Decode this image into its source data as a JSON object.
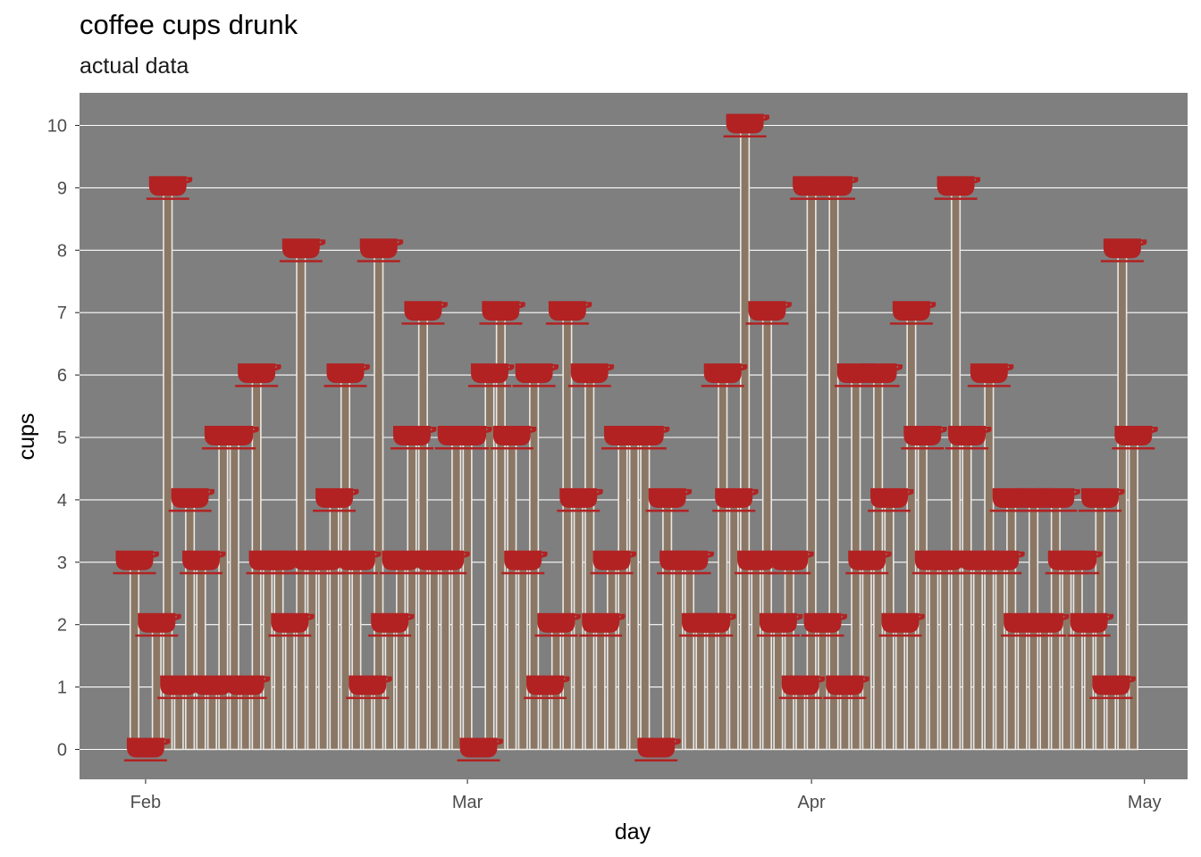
{
  "chart_data": {
    "type": "bar",
    "title": "coffee cups drunk",
    "subtitle": "actual data",
    "xlabel": "day",
    "ylabel": "cups",
    "start_date": "2020-01-31",
    "x_tick_labels": [
      {
        "label": "Feb",
        "date": "2020-02-01"
      },
      {
        "label": "Mar",
        "date": "2020-03-01"
      },
      {
        "label": "Apr",
        "date": "2020-04-01"
      },
      {
        "label": "May",
        "date": "2020-05-01"
      }
    ],
    "y_ticks": [
      0,
      1,
      2,
      3,
      4,
      5,
      6,
      7,
      8,
      9,
      10
    ],
    "ylim": [
      -0.5,
      10.5
    ],
    "grid": true,
    "colors": {
      "panel": "#7f7f7f",
      "bar": "#8b7765",
      "grid": "#ffffff",
      "cup": "#b22222"
    },
    "marker_icon": "coffee-cup-icon",
    "values": [
      3,
      0,
      2,
      9,
      1,
      4,
      3,
      1,
      5,
      5,
      1,
      6,
      3,
      3,
      2,
      8,
      3,
      3,
      4,
      6,
      3,
      1,
      8,
      2,
      3,
      5,
      7,
      3,
      3,
      5,
      5,
      0,
      6,
      7,
      5,
      3,
      6,
      1,
      2,
      7,
      4,
      6,
      2,
      3,
      5,
      5,
      5,
      0,
      4,
      3,
      3,
      2,
      2,
      6,
      4,
      10,
      3,
      7,
      2,
      3,
      1,
      9,
      2,
      9,
      1,
      6,
      3,
      6,
      4,
      2,
      7,
      5,
      3,
      3,
      9,
      5,
      3,
      6,
      3,
      4,
      2,
      4,
      2,
      4,
      3,
      3,
      2,
      4,
      1,
      8,
      5
    ]
  }
}
